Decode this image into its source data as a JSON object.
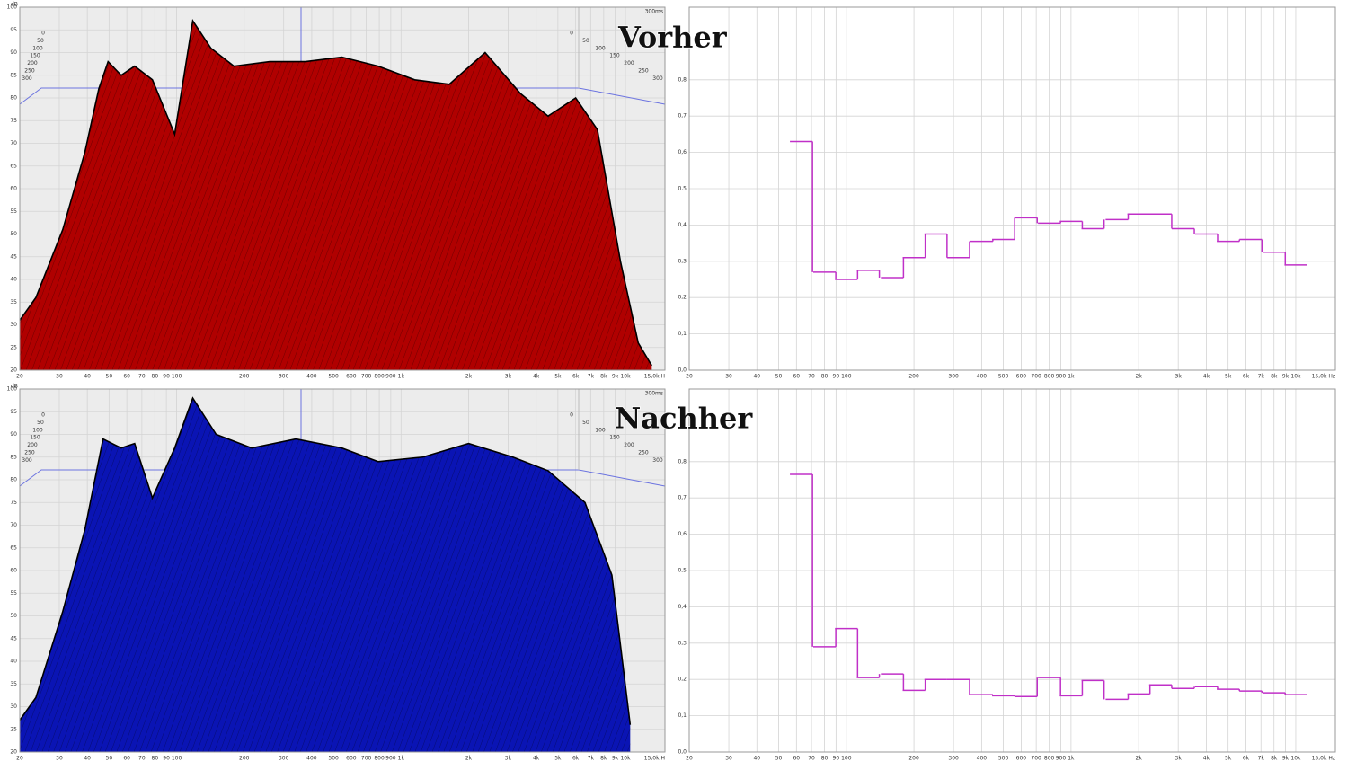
{
  "chart_data": [
    {
      "type": "waterfall",
      "title": "Vorher",
      "y_label": "dB",
      "z_label": "300ms",
      "zticks": [
        0,
        50,
        100,
        150,
        200,
        250,
        300
      ],
      "xlim": [
        20,
        15000
      ],
      "xticks": [
        20,
        30,
        40,
        50,
        60,
        70,
        80,
        90,
        100,
        200,
        300,
        400,
        500,
        600,
        700,
        800,
        900,
        {
          "value": 1000,
          "label": "1k"
        },
        {
          "value": 2000,
          "label": "2k"
        },
        {
          "value": 3000,
          "label": "3k"
        },
        {
          "value": 4000,
          "label": "4k"
        },
        {
          "value": 5000,
          "label": "5k"
        },
        {
          "value": 6000,
          "label": "6k"
        },
        {
          "value": 7000,
          "label": "7k"
        },
        {
          "value": 8000,
          "label": "8k"
        },
        {
          "value": 9000,
          "label": "9k"
        },
        {
          "value": 10000,
          "label": "10k"
        },
        {
          "value": 15000,
          "label": "15,0k H"
        }
      ],
      "ylim": [
        20,
        100
      ],
      "yticks": [
        20,
        25,
        30,
        35,
        40,
        45,
        50,
        55,
        60,
        65,
        70,
        75,
        80,
        85,
        90,
        95,
        100
      ],
      "series": [
        {
          "color": "#b00000",
          "x": [
            20,
            23.6,
            31.1,
            39,
            45,
            49.5,
            56.6,
            65,
            78,
            98,
            118,
            142,
            180,
            260,
            375,
            545,
            790,
            1150,
            1640,
            2370,
            3400,
            4520,
            6000,
            7500,
            9500,
            11400,
            13100
          ],
          "values": [
            31,
            36,
            51,
            68,
            82,
            88,
            85,
            87,
            84,
            72,
            97,
            91,
            87,
            88,
            88,
            89,
            87,
            84,
            83,
            90,
            81,
            76,
            80,
            73,
            44,
            26,
            21
          ]
        }
      ]
    },
    {
      "type": "step",
      "xlim": [
        20,
        15000
      ],
      "xticks": [
        20,
        30,
        40,
        50,
        60,
        70,
        80,
        90,
        100,
        200,
        300,
        400,
        500,
        600,
        700,
        800,
        900,
        {
          "value": 1000,
          "label": "1k"
        },
        {
          "value": 2000,
          "label": "2k"
        },
        {
          "value": 3000,
          "label": "3k"
        },
        {
          "value": 4000,
          "label": "4k"
        },
        {
          "value": 5000,
          "label": "5k"
        },
        {
          "value": 6000,
          "label": "6k"
        },
        {
          "value": 7000,
          "label": "7k"
        },
        {
          "value": 8000,
          "label": "8k"
        },
        {
          "value": 9000,
          "label": "9k"
        },
        {
          "value": 10000,
          "label": "10k"
        },
        {
          "value": 15000,
          "label": "15,0k Hz"
        }
      ],
      "ylim": [
        0,
        1
      ],
      "yticks": [
        {
          "value": 0,
          "label": "0,0"
        },
        {
          "value": 0.1,
          "label": "0,1"
        },
        {
          "value": 0.2,
          "label": "0,2"
        },
        {
          "value": 0.3,
          "label": "0,3"
        },
        {
          "value": 0.4,
          "label": "0,4"
        },
        {
          "value": 0.5,
          "label": "0,5"
        },
        {
          "value": 0.6,
          "label": "0,6"
        },
        {
          "value": 0.7,
          "label": "0,7"
        },
        {
          "value": 0.8,
          "label": "0,8"
        }
      ],
      "series": [
        {
          "color": "#c030c8",
          "x": [
            63,
            80,
            100,
            125,
            160,
            200,
            250,
            315,
            400,
            500,
            630,
            800,
            1000,
            1250,
            1600,
            2000,
            2500,
            3150,
            4000,
            5000,
            6300,
            8000,
            10000
          ],
          "values": [
            0.63,
            0.27,
            0.25,
            0.275,
            0.255,
            0.31,
            0.375,
            0.31,
            0.355,
            0.36,
            0.42,
            0.405,
            0.41,
            0.39,
            0.415,
            0.43,
            0.43,
            0.39,
            0.375,
            0.355,
            0.36,
            0.325,
            0.29
          ]
        }
      ]
    },
    {
      "type": "waterfall",
      "title": "Nachher",
      "y_label": "dB",
      "z_label": "300ms",
      "zticks": [
        0,
        50,
        100,
        150,
        200,
        250,
        300
      ],
      "xlim": [
        20,
        15000
      ],
      "xticks": [
        20,
        30,
        40,
        50,
        60,
        70,
        80,
        90,
        100,
        200,
        300,
        400,
        500,
        600,
        700,
        800,
        900,
        {
          "value": 1000,
          "label": "1k"
        },
        {
          "value": 2000,
          "label": "2k"
        },
        {
          "value": 3000,
          "label": "3k"
        },
        {
          "value": 4000,
          "label": "4k"
        },
        {
          "value": 5000,
          "label": "5k"
        },
        {
          "value": 6000,
          "label": "6k"
        },
        {
          "value": 7000,
          "label": "7k"
        },
        {
          "value": 8000,
          "label": "8k"
        },
        {
          "value": 9000,
          "label": "9k"
        },
        {
          "value": 10000,
          "label": "10k"
        },
        {
          "value": 15000,
          "label": "15,0k H"
        }
      ],
      "ylim": [
        20,
        100
      ],
      "yticks": [
        20,
        25,
        30,
        35,
        40,
        45,
        50,
        55,
        60,
        65,
        70,
        75,
        80,
        85,
        90,
        95,
        100
      ],
      "series": [
        {
          "color": "#0a14b4",
          "x": [
            20,
            23.6,
            31.1,
            39,
            47,
            56.6,
            65,
            78,
            98,
            118,
            150,
            216,
            340,
            545,
            790,
            1250,
            2000,
            3150,
            4520,
            6600,
            8700,
            10500
          ],
          "values": [
            27,
            32,
            51,
            69,
            89,
            87,
            88,
            76,
            87,
            98,
            90,
            87,
            89,
            87,
            84,
            85,
            88,
            85,
            82,
            75,
            59,
            26
          ]
        }
      ]
    },
    {
      "type": "step",
      "xlim": [
        20,
        15000
      ],
      "xticks": [
        20,
        30,
        40,
        50,
        60,
        70,
        80,
        90,
        100,
        200,
        300,
        400,
        500,
        600,
        700,
        800,
        900,
        {
          "value": 1000,
          "label": "1k"
        },
        {
          "value": 2000,
          "label": "2k"
        },
        {
          "value": 3000,
          "label": "3k"
        },
        {
          "value": 4000,
          "label": "4k"
        },
        {
          "value": 5000,
          "label": "5k"
        },
        {
          "value": 6000,
          "label": "6k"
        },
        {
          "value": 7000,
          "label": "7k"
        },
        {
          "value": 8000,
          "label": "8k"
        },
        {
          "value": 9000,
          "label": "9k"
        },
        {
          "value": 10000,
          "label": "10k"
        },
        {
          "value": 15000,
          "label": "15,0k Hz"
        }
      ],
      "ylim": [
        0,
        1
      ],
      "yticks": [
        {
          "value": 0,
          "label": "0,0"
        },
        {
          "value": 0.1,
          "label": "0,1"
        },
        {
          "value": 0.2,
          "label": "0,2"
        },
        {
          "value": 0.3,
          "label": "0,3"
        },
        {
          "value": 0.4,
          "label": "0,4"
        },
        {
          "value": 0.5,
          "label": "0,5"
        },
        {
          "value": 0.6,
          "label": "0,6"
        },
        {
          "value": 0.7,
          "label": "0,7"
        },
        {
          "value": 0.8,
          "label": "0,8"
        }
      ],
      "series": [
        {
          "color": "#c030c8",
          "x": [
            63,
            80,
            100,
            125,
            160,
            200,
            250,
            315,
            400,
            500,
            630,
            800,
            1000,
            1250,
            1600,
            2000,
            2500,
            3150,
            4000,
            5000,
            6300,
            8000,
            10000
          ],
          "values": [
            0.765,
            0.29,
            0.34,
            0.205,
            0.215,
            0.17,
            0.2,
            0.2,
            0.158,
            0.155,
            0.153,
            0.205,
            0.155,
            0.197,
            0.145,
            0.16,
            0.185,
            0.175,
            0.18,
            0.173,
            0.168,
            0.163,
            0.158
          ]
        }
      ]
    }
  ]
}
